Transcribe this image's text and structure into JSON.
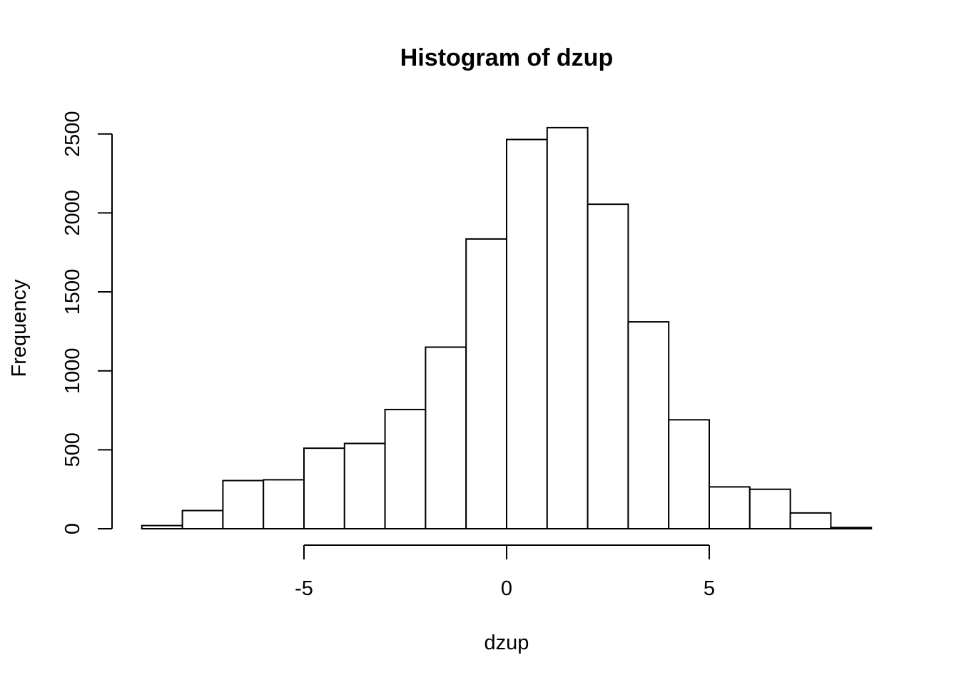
{
  "chart_data": {
    "type": "bar",
    "title": "Histogram of dzup",
    "xlabel": "dzup",
    "ylabel": "Frequency",
    "bins": [
      {
        "start": -9,
        "end": -8,
        "count": 20
      },
      {
        "start": -8,
        "end": -7,
        "count": 115
      },
      {
        "start": -7,
        "end": -6,
        "count": 305
      },
      {
        "start": -6,
        "end": -5,
        "count": 310
      },
      {
        "start": -5,
        "end": -4,
        "count": 510
      },
      {
        "start": -4,
        "end": -3,
        "count": 540
      },
      {
        "start": -3,
        "end": -2,
        "count": 755
      },
      {
        "start": -2,
        "end": -1,
        "count": 1150
      },
      {
        "start": -1,
        "end": 0,
        "count": 1835
      },
      {
        "start": 0,
        "end": 1,
        "count": 2465
      },
      {
        "start": 1,
        "end": 2,
        "count": 2540
      },
      {
        "start": 2,
        "end": 3,
        "count": 2055
      },
      {
        "start": 3,
        "end": 4,
        "count": 1310
      },
      {
        "start": 4,
        "end": 5,
        "count": 690
      },
      {
        "start": 5,
        "end": 6,
        "count": 265
      },
      {
        "start": 6,
        "end": 7,
        "count": 250
      },
      {
        "start": 7,
        "end": 8,
        "count": 100
      },
      {
        "start": 8,
        "end": 9,
        "count": 8
      }
    ],
    "xlim": [
      -9,
      9
    ],
    "ylim": [
      0,
      2540
    ],
    "x_ticks": [
      -5,
      0,
      5
    ],
    "x_tick_labels": [
      "-5",
      "0",
      "5"
    ],
    "y_ticks": [
      0,
      500,
      1000,
      1500,
      2000,
      2500
    ],
    "y_tick_labels": [
      "0",
      "500",
      "1000",
      "1500",
      "2000",
      "2500"
    ],
    "grid": false,
    "legend": "none"
  }
}
